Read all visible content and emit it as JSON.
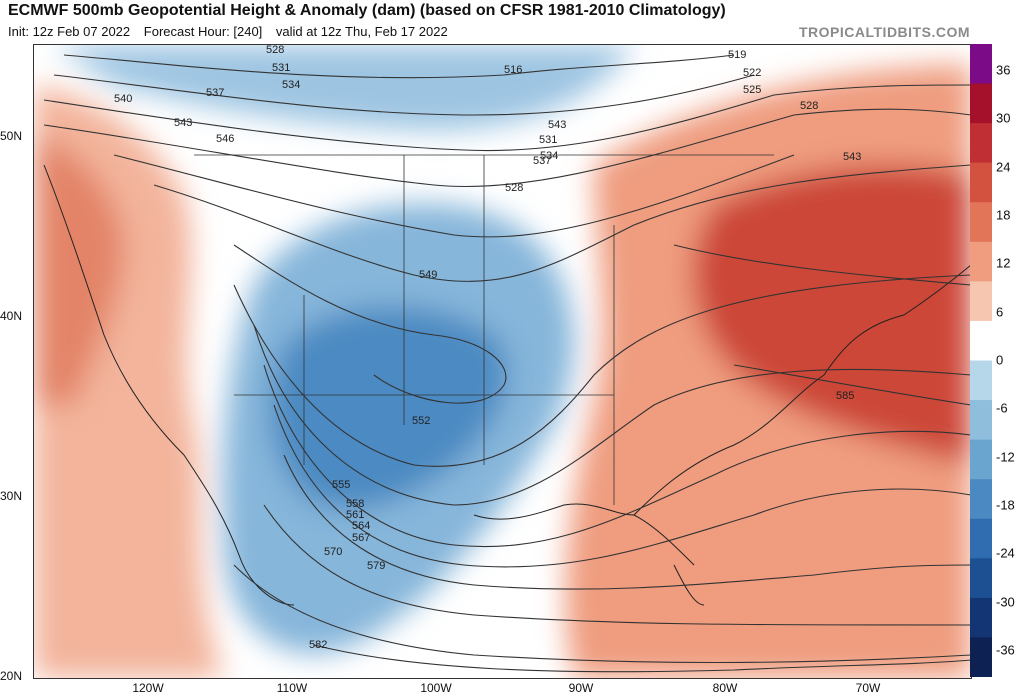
{
  "header": {
    "title": "ECMWF 500mb Geopotential Height & Anomaly (dam) (based on CFSR 1981-2010 Climatology)",
    "init": "Init: 12z Feb 07 2022",
    "forecast_hour": "Forecast Hour: [240]",
    "valid": "valid at 12z Thu, Feb 17 2022",
    "brand": "TROPICALTIDBITS.COM"
  },
  "colorbar": {
    "labels": [
      "36",
      "30",
      "24",
      "18",
      "12",
      "6",
      "0",
      "-6",
      "-12",
      "-18",
      "-24",
      "-30",
      "-36"
    ],
    "colors": [
      "#7b0b86",
      "#a5102a",
      "#c02f33",
      "#d2513f",
      "#e27558",
      "#ef9c7f",
      "#f7c6b0",
      "#ffffff",
      "#b6d7ea",
      "#8fbedd",
      "#6aa5d0",
      "#4a89c2",
      "#2f6db0",
      "#1d4f93",
      "#143574",
      "#0d2152"
    ]
  },
  "map_labels": {
    "lat": [
      "50N",
      "40N",
      "30N",
      "20N"
    ],
    "lon": [
      "120W",
      "110W",
      "100W",
      "90W",
      "80W",
      "70W"
    ],
    "contours": [
      "528",
      "531",
      "534",
      "537",
      "540",
      "543",
      "546",
      "516",
      "519",
      "522",
      "525",
      "528",
      "531",
      "534",
      "537",
      "528",
      "543",
      "543",
      "549",
      "552",
      "555",
      "558",
      "561",
      "564",
      "567",
      "570",
      "579",
      "582",
      "585"
    ]
  }
}
